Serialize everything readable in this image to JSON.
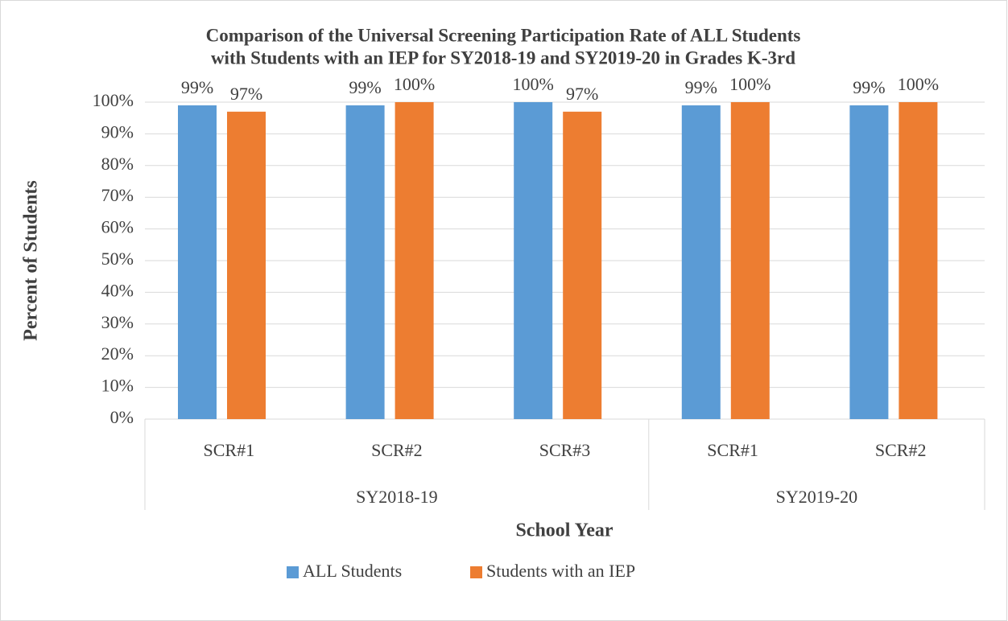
{
  "chart_data": {
    "type": "bar",
    "title": [
      "Comparison of the Universal Screening Participation Rate of ALL Students",
      "with Students with an IEP for SY2018-19 and SY2019-20 in Grades K-3rd"
    ],
    "x_label": "School Year",
    "y_label": "Percent of Students",
    "category_groups": [
      {
        "name": "SY2018-19",
        "categories": [
          "SCR#1",
          "SCR#2",
          "SCR#3"
        ]
      },
      {
        "name": "SY2019-20",
        "categories": [
          "SCR#1",
          "SCR#2"
        ]
      }
    ],
    "series": [
      {
        "name": "ALL Students",
        "color": "#5b9bd5",
        "values": [
          99,
          99,
          100,
          99,
          99
        ],
        "value_labels": [
          "99%",
          "99%",
          "100%",
          "99%",
          "99%"
        ]
      },
      {
        "name": "Students with an IEP",
        "color": "#ed7d31",
        "values": [
          97,
          100,
          97,
          100,
          100
        ],
        "value_labels": [
          "97%",
          "100%",
          "97%",
          "100%",
          "100%"
        ]
      }
    ],
    "ylim": [
      0,
      100
    ],
    "yticks": [
      {
        "value": 0,
        "label": "0%"
      },
      {
        "value": 10,
        "label": "10%"
      },
      {
        "value": 20,
        "label": "20%"
      },
      {
        "value": 30,
        "label": "30%"
      },
      {
        "value": 40,
        "label": "40%"
      },
      {
        "value": 50,
        "label": "50%"
      },
      {
        "value": 60,
        "label": "60%"
      },
      {
        "value": 70,
        "label": "70%"
      },
      {
        "value": 80,
        "label": "80%"
      },
      {
        "value": 90,
        "label": "90%"
      },
      {
        "value": 100,
        "label": "100%"
      }
    ],
    "grid": true,
    "legend": "bottom"
  }
}
